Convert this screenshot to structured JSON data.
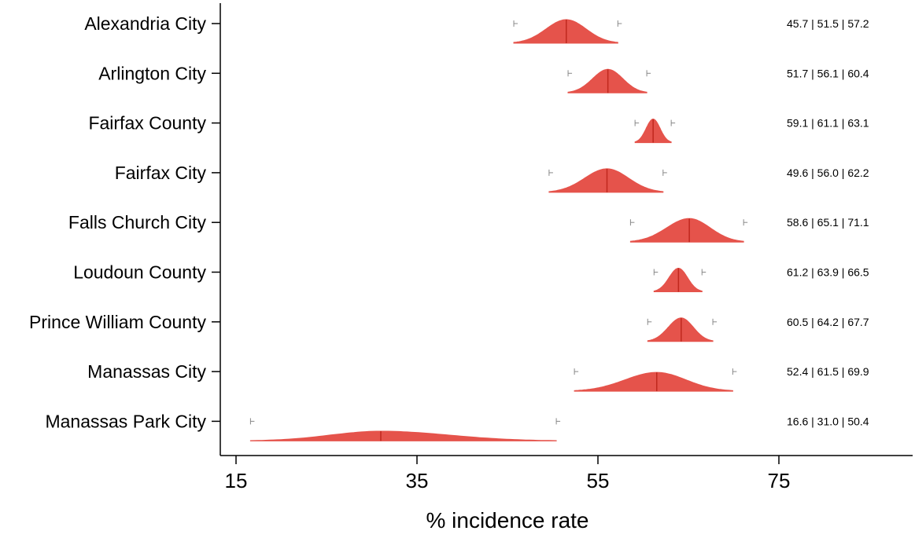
{
  "chart_data": {
    "type": "violin",
    "title": "",
    "xlabel": "% incidence rate",
    "ylabel": "",
    "xlim": [
      15,
      90
    ],
    "xticks": [
      15,
      35,
      55,
      75
    ],
    "grid": false,
    "legend": "none",
    "colors": {
      "fill": "#e5534b",
      "median": "#c0281e",
      "bound_marker": "#888888",
      "axis": "#000000"
    },
    "categories": [
      {
        "name": "Alexandria City",
        "low": 45.7,
        "median": 51.5,
        "high": 57.2,
        "label": "45.7 | 51.5 | 57.2"
      },
      {
        "name": "Arlington City",
        "low": 51.7,
        "median": 56.1,
        "high": 60.4,
        "label": "51.7 | 56.1 | 60.4"
      },
      {
        "name": "Fairfax County",
        "low": 59.1,
        "median": 61.1,
        "high": 63.1,
        "label": "59.1 | 61.1 | 63.1"
      },
      {
        "name": "Fairfax City",
        "low": 49.6,
        "median": 56.0,
        "high": 62.2,
        "label": "49.6 | 56.0 | 62.2"
      },
      {
        "name": "Falls Church City",
        "low": 58.6,
        "median": 65.1,
        "high": 71.1,
        "label": "58.6 | 65.1 | 71.1"
      },
      {
        "name": "Loudoun County",
        "low": 61.2,
        "median": 63.9,
        "high": 66.5,
        "label": "61.2 | 63.9 | 66.5"
      },
      {
        "name": "Prince William County",
        "low": 60.5,
        "median": 64.2,
        "high": 67.7,
        "label": "60.5 | 64.2 | 67.7"
      },
      {
        "name": "Manassas City",
        "low": 52.4,
        "median": 61.5,
        "high": 69.9,
        "label": "52.4 | 61.5 | 69.9"
      },
      {
        "name": "Manassas Park City",
        "low": 16.6,
        "median": 31.0,
        "high": 50.4,
        "label": "16.6 | 31.0 | 50.4"
      }
    ]
  }
}
